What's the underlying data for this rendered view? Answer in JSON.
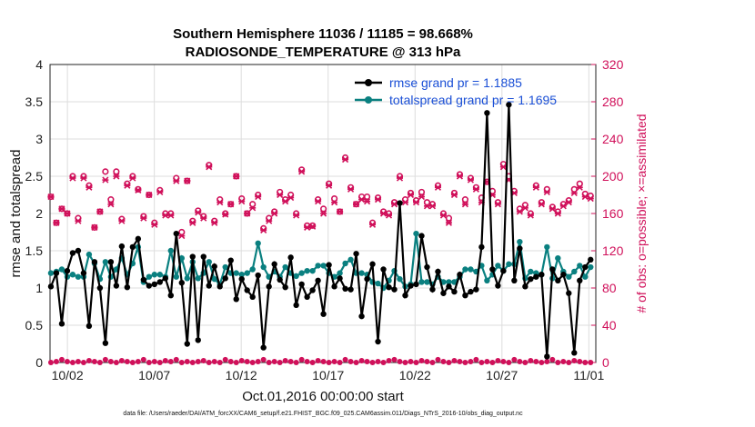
{
  "chart_data": {
    "type": "line",
    "title": "Southern Hemisphere 11036 / 11185 = 98.668%",
    "subtitle": "RADIOSONDE_TEMPERATURE @ 313 hPa",
    "xlabel": "Oct.01,2016 00:00:00 start",
    "ylabel": "rmse and totalspread",
    "ylabel_right": "# of obs: o=possible; ×=assimilated",
    "footer": "data file: /Users/raeder/DAI/ATM_forcXX/CAM6_setup/f.e21.FHIST_BGC.f09_025.CAM6assim.011/Diags_NTrS_2016-10/obs_diag_output.nc",
    "x_ticks": [
      "10/02",
      "10/07",
      "10/12",
      "10/17",
      "10/22",
      "10/27",
      "11/01"
    ],
    "x_tick_days": [
      1,
      6,
      11,
      16,
      21,
      26,
      31
    ],
    "xlim_days": [
      0,
      31.4
    ],
    "ylim": [
      0,
      4
    ],
    "yticks": [
      "0",
      "0.5",
      "1",
      "1.5",
      "2",
      "2.5",
      "3",
      "3.5",
      "4"
    ],
    "ylim_right": [
      0,
      320
    ],
    "yticks_right": [
      "0",
      "40",
      "80",
      "120",
      "160",
      "200",
      "240",
      "280",
      "320"
    ],
    "grid": true,
    "legend_position": "top-right",
    "series": [
      {
        "name": "rmse grand pr = 1.1885",
        "color": "#000000",
        "values": [
          1.02,
          1.2,
          0.52,
          1.23,
          1.47,
          1.5,
          1.2,
          0.49,
          1.35,
          1.0,
          0.26,
          1.35,
          1.03,
          1.56,
          1.01,
          1.55,
          1.66,
          1.11,
          1.03,
          1.05,
          1.08,
          1.13,
          0.9,
          1.73,
          1.07,
          0.25,
          1.42,
          0.3,
          1.42,
          1.03,
          1.29,
          1.02,
          1.13,
          1.37,
          0.85,
          1.12,
          0.97,
          0.88,
          1.17,
          0.2,
          1.02,
          1.32,
          1.11,
          1.01,
          1.41,
          0.77,
          1.05,
          0.88,
          0.97,
          1.1,
          0.65,
          1.31,
          1.02,
          1.13,
          0.99,
          0.98,
          1.46,
          0.62,
          1.12,
          1.32,
          0.28,
          1.25,
          1.01,
          0.98,
          2.14,
          0.9,
          1.03,
          1.05,
          1.7,
          1.28,
          0.98,
          1.22,
          0.93,
          1.02,
          0.95,
          1.18,
          0.9,
          0.95,
          0.98,
          1.55,
          3.35,
          1.25,
          1.03,
          1.23,
          3.46,
          1.1,
          1.53,
          1.02,
          1.12,
          1.15,
          1.18,
          0.08,
          1.25,
          1.1,
          1.18,
          0.93,
          0.13,
          1.1,
          1.28,
          1.38
        ]
      },
      {
        "name": "totalspread grand pr = 1.1695",
        "color": "#0a8080",
        "values": [
          1.2,
          1.22,
          1.25,
          1.15,
          1.18,
          1.15,
          1.15,
          1.45,
          1.33,
          1.12,
          1.35,
          1.15,
          1.25,
          1.4,
          1.18,
          1.33,
          1.55,
          1.08,
          1.15,
          1.18,
          1.18,
          1.15,
          1.5,
          1.15,
          1.4,
          1.13,
          1.35,
          1.13,
          1.2,
          1.35,
          1.12,
          1.05,
          1.28,
          1.2,
          1.2,
          1.18,
          1.2,
          1.25,
          1.6,
          1.28,
          1.15,
          1.22,
          1.15,
          1.28,
          1.2,
          1.16,
          1.2,
          1.23,
          1.23,
          1.3,
          1.3,
          1.2,
          1.15,
          1.2,
          1.33,
          1.38,
          1.2,
          1.2,
          1.18,
          1.08,
          1.06,
          1.0,
          1.1,
          1.23,
          1.12,
          1.02,
          1.05,
          1.73,
          1.08,
          1.08,
          1.05,
          1.15,
          1.08,
          1.08,
          1.08,
          1.15,
          1.25,
          1.25,
          1.22,
          1.3,
          1.1,
          1.18,
          1.3,
          1.23,
          1.32,
          1.32,
          1.62,
          1.13,
          1.22,
          1.2,
          1.18,
          1.55,
          1.13,
          1.4,
          1.22,
          1.15,
          1.22,
          1.3,
          1.15,
          1.28
        ]
      },
      {
        "name": "obs possible (o)",
        "color": "#d0105a",
        "axis": "right",
        "values": [
          178,
          150,
          165,
          160,
          200,
          155,
          200,
          190,
          145,
          162,
          205,
          175,
          205,
          154,
          192,
          200,
          186,
          157,
          180,
          150,
          185,
          160,
          160,
          198,
          140,
          195,
          152,
          163,
          157,
          212,
          152,
          175,
          160,
          170,
          200,
          176,
          160,
          170,
          180,
          144,
          155,
          162,
          183,
          175,
          180,
          160,
          207,
          147,
          147,
          175,
          165,
          192,
          176,
          162,
          220,
          188,
          170,
          178,
          178,
          150,
          177,
          162,
          160,
          172,
          200,
          175,
          182,
          174,
          183,
          172,
          170,
          190,
          160,
          155,
          182,
          202,
          175,
          198,
          188,
          177,
          194,
          184,
          172,
          213,
          200,
          184,
          165,
          169,
          160,
          190,
          172,
          186,
          167,
          162,
          170,
          174,
          186,
          192,
          181,
          179
        ]
      },
      {
        "name": "obs assimilated (×)",
        "color": "#d0105a",
        "axis": "right",
        "values": [
          178,
          150,
          165,
          160,
          198,
          152,
          198,
          188,
          145,
          162,
          196,
          170,
          200,
          152,
          190,
          198,
          185,
          155,
          180,
          148,
          183,
          158,
          158,
          195,
          136,
          195,
          150,
          161,
          155,
          210,
          150,
          172,
          159,
          170,
          200,
          173,
          160,
          166,
          178,
          142,
          152,
          160,
          180,
          173,
          177,
          158,
          205,
          145,
          146,
          173,
          160,
          190,
          172,
          162,
          218,
          186,
          170,
          175,
          173,
          148,
          175,
          160,
          158,
          170,
          198,
          172,
          180,
          172,
          178,
          168,
          168,
          188,
          158,
          150,
          180,
          200,
          170,
          196,
          186,
          172,
          194,
          180,
          170,
          210,
          196,
          182,
          162,
          166,
          158,
          188,
          170,
          183,
          165,
          160,
          168,
          172,
          182,
          188,
          178,
          176
        ]
      },
      {
        "name": "obs near-zero",
        "color": "#d0105a",
        "axis": "right",
        "values": [
          0,
          1,
          3,
          1,
          0,
          1,
          0,
          2,
          1,
          0,
          3,
          1,
          0,
          2,
          1,
          0,
          1,
          3,
          0,
          1,
          0,
          2,
          1,
          3,
          0,
          1,
          0,
          1,
          2,
          0,
          1,
          0,
          3,
          1,
          0,
          2,
          1,
          0,
          1,
          3,
          0,
          1,
          0,
          2,
          1,
          0,
          3,
          1,
          0,
          2,
          1,
          0,
          1,
          0,
          3,
          1,
          0,
          2,
          1,
          0,
          1,
          0,
          2,
          3,
          1,
          0,
          1,
          0,
          2,
          1,
          0,
          3,
          1,
          0,
          2,
          1,
          0,
          1,
          3,
          0,
          1,
          0,
          2,
          1,
          0,
          3,
          1,
          0,
          2,
          1,
          0,
          1,
          3,
          0,
          1,
          0,
          2,
          1,
          0,
          0
        ]
      }
    ]
  },
  "legend": {
    "items": [
      {
        "label": "rmse grand pr = 1.1885",
        "color": "#000000"
      },
      {
        "label": "totalspread grand pr = 1.1695",
        "color": "#0a8080"
      }
    ]
  }
}
